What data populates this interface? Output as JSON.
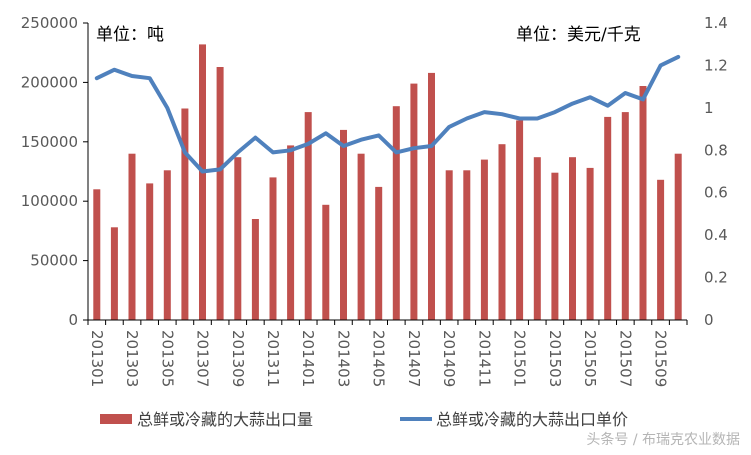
{
  "chart_data": {
    "type": "bar+line",
    "title": "",
    "categories": [
      "201301",
      "201302",
      "201303",
      "201304",
      "201305",
      "201306",
      "201307",
      "201308",
      "201309",
      "201310",
      "201311",
      "201312",
      "201401",
      "201402",
      "201403",
      "201404",
      "201405",
      "201406",
      "201407",
      "201408",
      "201409",
      "201410",
      "201411",
      "201412",
      "201501",
      "201502",
      "201503",
      "201504",
      "201505",
      "201506",
      "201507",
      "201508",
      "201509",
      "201510"
    ],
    "x_tick_labels": [
      "201301",
      "201303",
      "201305",
      "201307",
      "201309",
      "201311",
      "201401",
      "201403",
      "201405",
      "201407",
      "201409",
      "201411",
      "201501",
      "201503",
      "201505",
      "201507",
      "201509"
    ],
    "series": [
      {
        "name": "总鲜或冷藏的大蒜出口量",
        "type": "bar",
        "axis": "left",
        "color": "#c0504d",
        "values": [
          110000,
          78000,
          140000,
          115000,
          126000,
          178000,
          232000,
          213000,
          137000,
          85000,
          120000,
          147000,
          175000,
          97000,
          160000,
          140000,
          112000,
          180000,
          199000,
          208000,
          126000,
          126000,
          135000,
          148000,
          168000,
          137000,
          124000,
          137000,
          128000,
          171000,
          175000,
          197000,
          118000,
          140000
        ]
      },
      {
        "name": "总鲜或冷藏的大蒜出口单价",
        "type": "line",
        "axis": "right",
        "color": "#4f81bd",
        "values": [
          1.14,
          1.18,
          1.15,
          1.14,
          1.0,
          0.79,
          0.7,
          0.71,
          0.79,
          0.86,
          0.79,
          0.8,
          0.83,
          0.88,
          0.82,
          0.85,
          0.87,
          0.79,
          0.81,
          0.82,
          0.91,
          0.95,
          0.98,
          0.97,
          0.95,
          0.95,
          0.98,
          1.02,
          1.05,
          1.01,
          1.07,
          1.04,
          1.2,
          1.24
        ]
      }
    ],
    "left_axis": {
      "label": "单位：吨",
      "ylim": [
        0,
        250000
      ],
      "ticks": [
        "0",
        "50000",
        "100000",
        "150000",
        "200000",
        "250000"
      ]
    },
    "right_axis": {
      "label": "单位：美元/千克",
      "ylim": [
        0,
        1.4
      ],
      "ticks": [
        "0",
        "0.2",
        "0.4",
        "0.6",
        "0.8",
        "1",
        "1.2",
        "1.4"
      ]
    },
    "grid": false,
    "legend_position": "bottom"
  },
  "legend": {
    "bar_label": "总鲜或冷藏的大蒜出口量",
    "line_label": "总鲜或冷藏的大蒜出口单价"
  },
  "units": {
    "left": "单位：吨",
    "right": "单位：美元/千克"
  },
  "watermark": "头条号 / 布瑞克农业数据"
}
